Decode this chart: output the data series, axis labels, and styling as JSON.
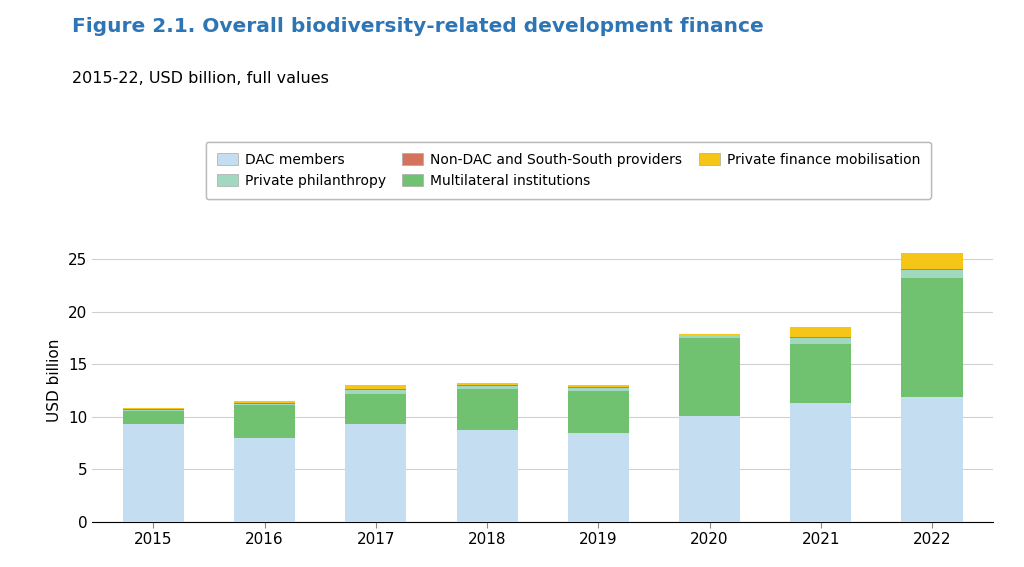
{
  "years": [
    2015,
    2016,
    2017,
    2018,
    2019,
    2020,
    2021,
    2022
  ],
  "title": "Figure 2.1. Overall biodiversity-related development finance",
  "subtitle": "2015-22, USD billion, full values",
  "ylabel": "USD billion",
  "ylim": [
    0,
    27
  ],
  "yticks": [
    0,
    5,
    10,
    15,
    20,
    25
  ],
  "series": {
    "DAC members": {
      "values": [
        9.3,
        8.0,
        9.3,
        8.7,
        8.4,
        10.1,
        11.3,
        11.9
      ],
      "color": "#c5ddf0"
    },
    "Multilateral institutions": {
      "values": [
        1.2,
        3.1,
        2.9,
        3.9,
        4.0,
        7.4,
        5.6,
        11.3
      ],
      "color": "#70c270"
    },
    "Private philanthropy": {
      "values": [
        0.15,
        0.15,
        0.35,
        0.35,
        0.35,
        0.25,
        0.55,
        0.75
      ],
      "color": "#a0d8c0"
    },
    "Non-DAC and South-South providers": {
      "values": [
        0.05,
        0.05,
        0.1,
        0.1,
        0.1,
        0.05,
        0.1,
        0.1
      ],
      "color": "#d4735e"
    },
    "Private finance mobilisation": {
      "values": [
        0.1,
        0.15,
        0.35,
        0.15,
        0.15,
        0.05,
        0.95,
        1.55
      ],
      "color": "#f5c518"
    }
  },
  "stack_order": [
    "DAC members",
    "Multilateral institutions",
    "Private philanthropy",
    "Non-DAC and South-South providers",
    "Private finance mobilisation"
  ],
  "legend_order": [
    "DAC members",
    "Private philanthropy",
    "Non-DAC and South-South providers",
    "Multilateral institutions",
    "Private finance mobilisation"
  ],
  "title_color": "#2e75b6",
  "subtitle_color": "#000000",
  "background_color": "#ffffff",
  "grid_color": "#d0d0d0"
}
